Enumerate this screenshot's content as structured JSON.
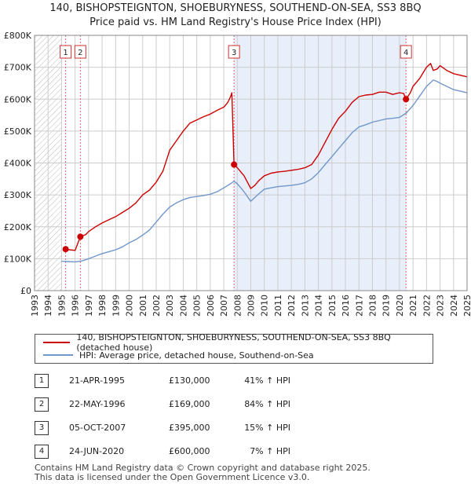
{
  "title": {
    "line1": "140, BISHOPSTEIGNTON, SHOEBURYNESS, SOUTHEND-ON-SEA, SS3 8BQ",
    "line2": "Price paid vs. HM Land Registry's House Price Index (HPI)"
  },
  "chart_data": {
    "type": "line",
    "title": "140, BISHOPSTEIGNTON, SHOEBURYNESS, SOUTHEND-ON-SEA, SS3 8BQ — Price paid vs. HM Land Registry's House Price Index (HPI)",
    "xlim": [
      1993,
      2025
    ],
    "ylim": [
      0,
      800000
    ],
    "x_ticks": [
      1993,
      1994,
      1995,
      1996,
      1997,
      1998,
      1999,
      2000,
      2001,
      2002,
      2003,
      2004,
      2005,
      2006,
      2007,
      2008,
      2009,
      2010,
      2011,
      2012,
      2013,
      2014,
      2015,
      2016,
      2017,
      2018,
      2019,
      2020,
      2021,
      2022,
      2023,
      2024,
      2025
    ],
    "y_ticks": [
      {
        "value": 0,
        "label": "£0"
      },
      {
        "value": 100000,
        "label": "£100K"
      },
      {
        "value": 200000,
        "label": "£200K"
      },
      {
        "value": 300000,
        "label": "£300K"
      },
      {
        "value": 400000,
        "label": "£400K"
      },
      {
        "value": 500000,
        "label": "£500K"
      },
      {
        "value": 600000,
        "label": "£600K"
      },
      {
        "value": 700000,
        "label": "£700K"
      },
      {
        "value": 800000,
        "label": "£800K"
      }
    ],
    "hatched_before": 1995.0,
    "shaded_region": [
      2007.76,
      2020.48
    ],
    "series": [
      {
        "name": "140, BISHOPSTEIGNTON, SHOEBURYNESS, SOUTHEND-ON-SEA, SS3 8BQ (detached house)",
        "color": "#cc0000",
        "x": [
          1995.3,
          1995.6,
          1996.0,
          1996.39,
          1996.8,
          1997.0,
          1997.5,
          1998.0,
          1998.5,
          1999.0,
          1999.5,
          2000.0,
          2000.5,
          2001.0,
          2001.5,
          2002.0,
          2002.5,
          2003.0,
          2003.5,
          2004.0,
          2004.5,
          2005.0,
          2005.5,
          2006.0,
          2006.5,
          2007.0,
          2007.3,
          2007.5,
          2007.6,
          2007.76,
          2008.0,
          2008.5,
          2009.0,
          2009.3,
          2009.6,
          2010.0,
          2010.5,
          2011.0,
          2011.5,
          2012.0,
          2012.5,
          2013.0,
          2013.5,
          2014.0,
          2014.5,
          2015.0,
          2015.5,
          2016.0,
          2016.5,
          2017.0,
          2017.5,
          2018.0,
          2018.5,
          2019.0,
          2019.5,
          2020.0,
          2020.3,
          2020.48,
          2020.8,
          2021.0,
          2021.5,
          2022.0,
          2022.3,
          2022.5,
          2022.8,
          2023.0,
          2023.5,
          2024.0,
          2024.5,
          2025.0
        ],
        "values": [
          130000,
          128000,
          126000,
          169000,
          176000,
          185000,
          200000,
          212000,
          222000,
          232000,
          245000,
          258000,
          275000,
          300000,
          315000,
          340000,
          375000,
          440000,
          470000,
          500000,
          525000,
          535000,
          545000,
          553000,
          565000,
          575000,
          590000,
          608000,
          620000,
          395000,
          385000,
          360000,
          320000,
          330000,
          345000,
          360000,
          368000,
          372000,
          374000,
          377000,
          380000,
          385000,
          395000,
          425000,
          465000,
          505000,
          540000,
          562000,
          590000,
          608000,
          613000,
          615000,
          622000,
          622000,
          615000,
          620000,
          618000,
          600000,
          620000,
          640000,
          665000,
          700000,
          712000,
          690000,
          695000,
          705000,
          690000,
          680000,
          675000,
          670000
        ]
      },
      {
        "name": "HPI: Average price, detached house, Southend-on-Sea",
        "color": "#6f97cb",
        "x": [
          1995.0,
          1995.5,
          1996.0,
          1996.5,
          1997.0,
          1997.5,
          1998.0,
          1998.5,
          1999.0,
          1999.5,
          2000.0,
          2000.5,
          2001.0,
          2001.5,
          2002.0,
          2002.5,
          2003.0,
          2003.5,
          2004.0,
          2004.5,
          2005.0,
          2005.5,
          2006.0,
          2006.5,
          2007.0,
          2007.5,
          2007.76,
          2008.0,
          2008.5,
          2009.0,
          2009.5,
          2010.0,
          2010.5,
          2011.0,
          2011.5,
          2012.0,
          2012.5,
          2013.0,
          2013.5,
          2014.0,
          2014.5,
          2015.0,
          2015.5,
          2016.0,
          2016.5,
          2017.0,
          2017.5,
          2018.0,
          2018.5,
          2019.0,
          2019.5,
          2020.0,
          2020.48,
          2021.0,
          2021.5,
          2022.0,
          2022.5,
          2022.8,
          2023.0,
          2023.5,
          2024.0,
          2024.5,
          2025.0
        ],
        "values": [
          92000,
          91000,
          90000,
          93000,
          100000,
          108000,
          116000,
          122000,
          128000,
          137000,
          150000,
          160000,
          174000,
          190000,
          215000,
          240000,
          262000,
          275000,
          285000,
          292000,
          295000,
          298000,
          302000,
          310000,
          322000,
          335000,
          343000,
          335000,
          310000,
          280000,
          300000,
          318000,
          322000,
          326000,
          328000,
          330000,
          333000,
          338000,
          350000,
          370000,
          395000,
          420000,
          445000,
          470000,
          495000,
          513000,
          520000,
          528000,
          533000,
          538000,
          540000,
          543000,
          556000,
          580000,
          610000,
          640000,
          660000,
          655000,
          650000,
          640000,
          630000,
          625000,
          620000
        ]
      }
    ],
    "sales": [
      {
        "num": "1",
        "x": 1995.3,
        "price": 130000
      },
      {
        "num": "2",
        "x": 1996.39,
        "price": 169000
      },
      {
        "num": "3",
        "x": 2007.76,
        "price": 395000
      },
      {
        "num": "4",
        "x": 2020.48,
        "price": 600000
      }
    ]
  },
  "legend": {
    "property": "140, BISHOPSTEIGNTON, SHOEBURYNESS, SOUTHEND-ON-SEA, SS3 8BQ (detached house)",
    "hpi": "HPI: Average price, detached house, Southend-on-Sea",
    "property_color": "#cc0000",
    "hpi_color": "#6f97cb"
  },
  "sales_table": [
    {
      "num": "1",
      "date": "21-APR-1995",
      "price": "£130,000",
      "hpi": "41% ↑ HPI"
    },
    {
      "num": "2",
      "date": "22-MAY-1996",
      "price": "£169,000",
      "hpi": "84% ↑ HPI"
    },
    {
      "num": "3",
      "date": "05-OCT-2007",
      "price": "£395,000",
      "hpi": "15% ↑ HPI"
    },
    {
      "num": "4",
      "date": "24-JUN-2020",
      "price": "£600,000",
      "hpi": "7% ↑ HPI"
    }
  ],
  "footer": {
    "line1": "Contains HM Land Registry data © Crown copyright and database right 2025.",
    "line2": "This data is licensed under the Open Government Licence v3.0."
  }
}
